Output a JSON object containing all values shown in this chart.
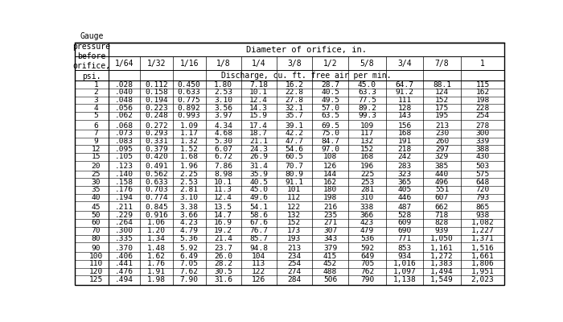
{
  "title_top": "Diameter of orifice, in.",
  "title_sub": "Discharge, cu. ft. free air per min.",
  "col_headers": [
    "1/64",
    "1/32",
    "1/16",
    "1/8",
    "1/4",
    "3/8",
    "1/2",
    "5/8",
    "3/4",
    "7/8",
    "1"
  ],
  "rows": [
    [
      "1",
      ".028",
      "0.112",
      "0.450",
      "1.80",
      "7.18",
      "16.2",
      "28.7",
      "45.0",
      "64.7",
      "88.1",
      "115"
    ],
    [
      "2",
      ".040",
      "0.158",
      "0.633",
      "2.53",
      "10.1",
      "22.8",
      "40.5",
      "63.3",
      "91.2",
      "124",
      "162"
    ],
    [
      "3",
      ".048",
      "0.194",
      "0.775",
      "3.10",
      "12.4",
      "27.8",
      "49.5",
      "77.5",
      "111",
      "152",
      "198"
    ],
    [
      "4",
      ".056",
      "0.223",
      "0.892",
      "3.56",
      "14.3",
      "32.1",
      "57.0",
      "89.2",
      "128",
      "175",
      "228"
    ],
    [
      "5",
      ".062",
      "0.248",
      "0.993",
      "3.97",
      "15.9",
      "35.7",
      "63.5",
      "99.3",
      "143",
      "195",
      "254"
    ],
    [
      "6",
      ".068",
      "0.272",
      "1.09",
      "4.34",
      "17.4",
      "39.1",
      "69.5",
      "109",
      "156",
      "213",
      "278"
    ],
    [
      "7",
      ".073",
      "0.293",
      "1.17",
      "4.68",
      "18.7",
      "42.2",
      "75.0",
      "117",
      "168",
      "230",
      "300"
    ],
    [
      "9",
      ".083",
      "0.331",
      "1.32",
      "5.30",
      "21.1",
      "47.7",
      "84.7",
      "132",
      "191",
      "260",
      "339"
    ],
    [
      "12",
      ".095",
      "0.379",
      "1.52",
      "6.07",
      "24.3",
      "54.6",
      "97.0",
      "152",
      "218",
      "297",
      "388"
    ],
    [
      "15",
      ".105",
      "0.420",
      "1.68",
      "6.72",
      "26.9",
      "60.5",
      "108",
      "168",
      "242",
      "329",
      "430"
    ],
    [
      "20",
      ".123",
      "0.491",
      "1.96",
      "7.86",
      "31.4",
      "70.7",
      "126",
      "196",
      "283",
      "385",
      "503"
    ],
    [
      "25",
      ".140",
      "0.562",
      "2.25",
      "8.98",
      "35.9",
      "80.9",
      "144",
      "225",
      "323",
      "440",
      "575"
    ],
    [
      "30",
      ".158",
      "0.633",
      "2.53",
      "10.1",
      "40.5",
      "91.1",
      "162",
      "253",
      "365",
      "496",
      "648"
    ],
    [
      "35",
      ".176",
      "0.703",
      "2.81",
      "11.3",
      "45.0",
      "101",
      "180",
      "281",
      "405",
      "551",
      "720"
    ],
    [
      "40",
      ".194",
      "0.774",
      "3.10",
      "12.4",
      "49.6",
      "112",
      "198",
      "310",
      "446",
      "607",
      "793"
    ],
    [
      "45",
      ".211",
      "0.845",
      "3.38",
      "13.5",
      "54.1",
      "122",
      "216",
      "338",
      "487",
      "662",
      "865"
    ],
    [
      "50",
      ".229",
      "0.916",
      "3.66",
      "14.7",
      "58.6",
      "132",
      "235",
      "366",
      "528",
      "718",
      "938"
    ],
    [
      "60",
      ".264",
      "1.06",
      "4.23",
      "16.9",
      "67.6",
      "152",
      "271",
      "423",
      "609",
      "828",
      "1,082"
    ],
    [
      "70",
      ".300",
      "1.20",
      "4.79",
      "19.2",
      "76.7",
      "173",
      "307",
      "479",
      "690",
      "939",
      "1,227"
    ],
    [
      "80",
      ".335",
      "1.34",
      "5.36",
      "21.4",
      "85.7",
      "193",
      "343",
      "536",
      "771",
      "1,050",
      "1,371"
    ],
    [
      "90",
      ".370",
      "1.48",
      "5.92",
      "23.7",
      "94.8",
      "213",
      "379",
      "592",
      "853",
      "1,161",
      "1,516"
    ],
    [
      "100",
      ".406",
      "1.62",
      "6.49",
      "26.0",
      "104",
      "234",
      "415",
      "649",
      "934",
      "1,272",
      "1,661"
    ],
    [
      "110",
      ".441",
      "1.76",
      "7.05",
      "28.2",
      "113",
      "254",
      "452",
      "705",
      "1,016",
      "1,383",
      "1,806"
    ],
    [
      "120",
      ".476",
      "1.91",
      "7.62",
      "30.5",
      "122",
      "274",
      "488",
      "762",
      "1,097",
      "1,494",
      "1,951"
    ],
    [
      "125",
      ".494",
      "1.98",
      "7.90",
      "31.6",
      "126",
      "284",
      "506",
      "790",
      "1,138",
      "1,549",
      "2,023"
    ]
  ],
  "group_sep_after": [
    4,
    9,
    14,
    19,
    24
  ],
  "background_color": "#ffffff",
  "font_size": 6.8,
  "header_font_size": 7.5
}
